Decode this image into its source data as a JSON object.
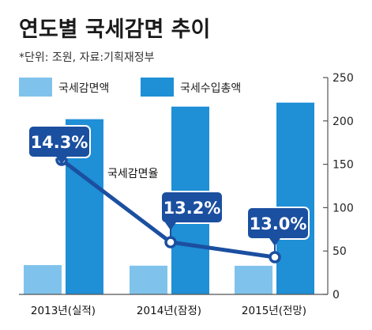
{
  "chart_data": {
    "type": "bar",
    "title": "연도별 국세감면 추이",
    "subtitle": "*단위: 조원, 자료:기획재정부",
    "categories": [
      "2013년(실적)",
      "2014년(잠정)",
      "2015년(전망)"
    ],
    "series": [
      {
        "name": "국세감면액",
        "values": [
          33.8,
          33.1,
          33.0
        ],
        "color": "#7fc3ec"
      },
      {
        "name": "국세수입총액",
        "values": [
          202.0,
          216.5,
          221.1
        ],
        "color": "#1f8fd6"
      }
    ],
    "line_series": {
      "name": "국세감면율",
      "values": [
        14.3,
        13.2,
        13.0
      ],
      "labels": [
        "14.3%",
        "13.2%",
        "13.0%"
      ],
      "color": "#1b4fa0"
    },
    "y_axis": {
      "ylim": [
        0,
        250
      ],
      "ticks": [
        0,
        50,
        100,
        150,
        200,
        250
      ],
      "position": "right"
    },
    "grid": false,
    "legend_position": "top-left"
  }
}
